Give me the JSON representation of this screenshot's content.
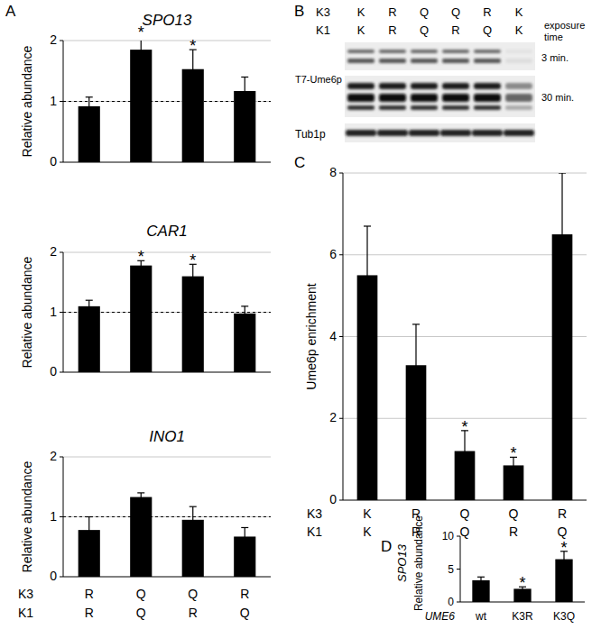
{
  "panel_labels": [
    "A",
    "B",
    "C",
    "D"
  ],
  "chart_data": [
    {
      "type": "bar",
      "title": "SPO13",
      "ylabel": "Relative abundance",
      "categories": [
        null,
        null,
        null,
        null
      ],
      "values": [
        0.92,
        1.85,
        1.53,
        1.17
      ],
      "errors": [
        0.15,
        0.22,
        0.32,
        0.23
      ],
      "stars": [
        null,
        "*",
        "*",
        null
      ],
      "ref_line": 1,
      "ylim": [
        0,
        2
      ],
      "yticks": [
        0,
        1,
        2
      ],
      "grid": true,
      "color": "#000000"
    },
    {
      "type": "bar",
      "title": "CAR1",
      "ylabel": "Relative abundance",
      "categories": [
        null,
        null,
        null,
        null
      ],
      "values": [
        1.1,
        1.78,
        1.6,
        0.98
      ],
      "errors": [
        0.1,
        0.08,
        0.2,
        0.12
      ],
      "stars": [
        null,
        "*",
        "*",
        null
      ],
      "ref_line": 1,
      "ylim": [
        0,
        2
      ],
      "yticks": [
        0,
        1,
        2
      ],
      "grid": true,
      "color": "#000000"
    },
    {
      "type": "bar",
      "title": "INO1",
      "ylabel": "Relative abundance",
      "categories": [
        null,
        null,
        null,
        null
      ],
      "x_rows": [
        {
          "name": "K3",
          "labels": [
            "R",
            "Q",
            "Q",
            "R"
          ]
        },
        {
          "name": "K1",
          "labels": [
            "R",
            "Q",
            "R",
            "Q"
          ]
        }
      ],
      "values": [
        0.78,
        1.33,
        0.95,
        0.67
      ],
      "errors": [
        0.22,
        0.07,
        0.22,
        0.15
      ],
      "ref_line": 1,
      "ylim": [
        0,
        2
      ],
      "yticks": [
        0,
        1,
        2
      ],
      "grid": true,
      "color": "#000000"
    },
    {
      "type": "bar",
      "ylabel": "Ume6p enrichment",
      "categories": [
        null,
        null,
        null,
        null,
        null
      ],
      "x_rows": [
        {
          "name": "K3",
          "labels": [
            "K",
            "R",
            "Q",
            "Q",
            "R"
          ]
        },
        {
          "name": "K1",
          "labels": [
            "K",
            "R",
            "Q",
            "R",
            "Q"
          ]
        }
      ],
      "values": [
        5.5,
        3.3,
        1.2,
        0.85,
        6.5
      ],
      "errors": [
        1.2,
        1.0,
        0.5,
        0.2,
        1.5
      ],
      "stars": [
        null,
        null,
        "*",
        "*",
        null
      ],
      "ylim": [
        0,
        8
      ],
      "yticks": [
        0,
        2,
        4,
        6,
        8
      ],
      "grid": true,
      "color": "#000000"
    },
    {
      "type": "bar",
      "title": "SPO13",
      "ylabel": "Relative abundance",
      "xlabel": "UME6",
      "categories": [
        "wt",
        "K3R",
        "K3Q"
      ],
      "values": [
        3.3,
        2.0,
        6.5
      ],
      "errors": [
        0.5,
        0.3,
        1.2
      ],
      "stars": [
        null,
        "*",
        "*"
      ],
      "ylim": [
        0,
        10
      ],
      "yticks": [
        0,
        5,
        10
      ],
      "grid": false,
      "color": "#000000"
    }
  ],
  "blot": {
    "column_rows": [
      {
        "name": "K3",
        "labels": [
          "K",
          "R",
          "Q",
          "Q",
          "R",
          "K"
        ]
      },
      {
        "name": "K1",
        "labels": [
          "K",
          "R",
          "Q",
          "R",
          "Q",
          "K"
        ]
      }
    ],
    "exposure_header": "exposure time",
    "protein": "T7-Ume6p",
    "exposures": [
      "3 min.",
      "30 min."
    ],
    "loading": "Tub1p"
  }
}
